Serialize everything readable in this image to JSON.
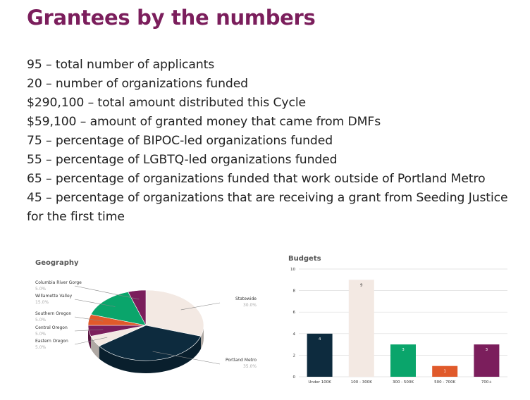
{
  "page": {
    "title": "Grantees by the numbers",
    "stats": [
      "95 – total number of applicants",
      "20 – number of organizations funded",
      "$290,100 – total amount distributed this Cycle",
      "$59,100 – amount of granted money that came from DMFs",
      "75 – percentage of BIPOC-led organizations funded",
      "55 – percentage of LGBTQ-led organizations funded",
      "65 – percentage of organizations funded that work outside of Portland Metro",
      "45 – percentage of organizations that are receiving a grant from Seeding Justice for the first time"
    ]
  },
  "chart_data": [
    {
      "type": "pie",
      "title": "Geography",
      "slices": [
        {
          "label": "Statewide",
          "value": 30.0,
          "value_label": "30.0%",
          "color": "#f3e9e3"
        },
        {
          "label": "Portland Metro",
          "value": 35.0,
          "value_label": "35.0%",
          "color": "#0d2b3e"
        },
        {
          "label": "Eastern Oregon",
          "value": 5.0,
          "value_label": "5.0%",
          "color": "#f3e9e3"
        },
        {
          "label": "Central Oregon",
          "value": 5.0,
          "value_label": "5.0%",
          "color": "#7b1e5c"
        },
        {
          "label": "Southern Oregon",
          "value": 5.0,
          "value_label": "5.0%",
          "color": "#e05a2b"
        },
        {
          "label": "Willamette Valley",
          "value": 15.0,
          "value_label": "15.0%",
          "color": "#0aa56b"
        },
        {
          "label": "Columbia River Gorge",
          "value": 5.0,
          "value_label": "5.0%",
          "color": "#7b1e5c"
        }
      ]
    },
    {
      "type": "bar",
      "title": "Budgets",
      "categories": [
        "Under 100K",
        "100 - 300K",
        "300 - 500K",
        "500 - 700K",
        "700+"
      ],
      "values": [
        4,
        9,
        3,
        1,
        3
      ],
      "colors": [
        "#0d2b3e",
        "#f3e9e3",
        "#0aa56b",
        "#e05a2b",
        "#7b1e5c"
      ],
      "ylim": [
        0,
        10
      ],
      "yticks": [
        0,
        2,
        4,
        6,
        8,
        10
      ],
      "grid": true
    }
  ]
}
